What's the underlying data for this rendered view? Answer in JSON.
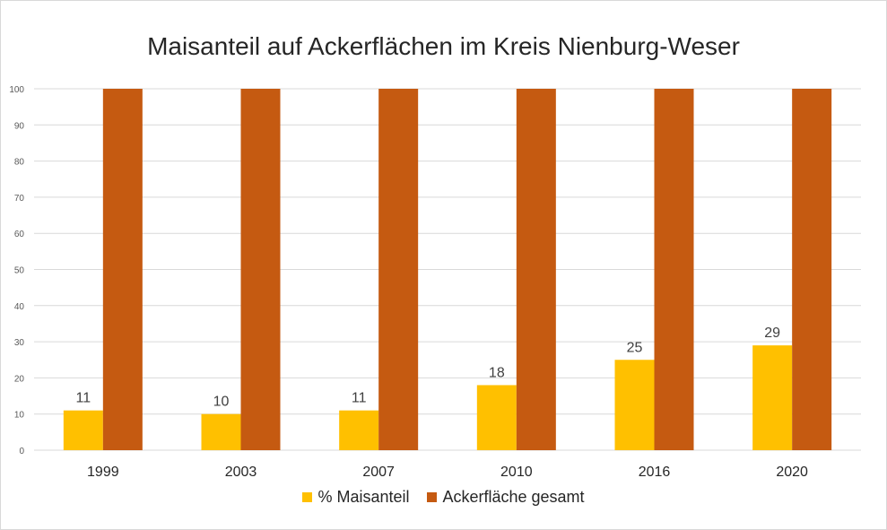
{
  "chart_data": {
    "type": "bar",
    "title": "Maisanteil auf Ackerflächen im Kreis Nienburg-Weser",
    "xlabel": "",
    "ylabel": "",
    "categories": [
      "1999",
      "2003",
      "2007",
      "2010",
      "2016",
      "2020"
    ],
    "series": [
      {
        "name": "% Maisanteil",
        "values": [
          11,
          10,
          11,
          18,
          25,
          29
        ],
        "color": "#FFC000",
        "data_labels": true
      },
      {
        "name": "Ackerfläche gesamt",
        "values": [
          100,
          100,
          100,
          100,
          100,
          100
        ],
        "color": "#C55A11",
        "data_labels": false
      }
    ],
    "ylim": [
      0,
      100
    ],
    "yticks": [
      0,
      10,
      20,
      30,
      40,
      50,
      60,
      70,
      80,
      90,
      100
    ],
    "grid": true,
    "legend_position": "bottom"
  }
}
